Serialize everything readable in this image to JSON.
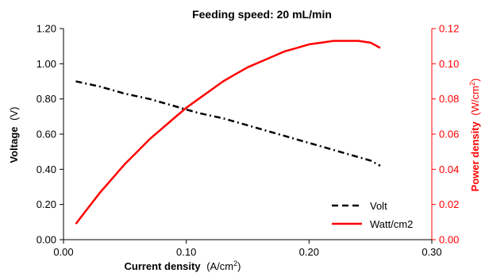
{
  "chart_data": {
    "type": "line",
    "title": "Feeding speed: 20 mL/min",
    "xlabel": "Current density",
    "xlabel_unit": "(A/cm",
    "xlabel_unit_sup": "2",
    "xlabel_unit_end": ")",
    "ylabel": "Voltage",
    "ylabel_unit": "(V)",
    "y2label": "Power density",
    "y2label_unit": "(W/cm",
    "y2label_unit_sup": "2",
    "y2label_unit_end": ")",
    "xlim": [
      0,
      0.3
    ],
    "ylim": [
      0,
      1.2
    ],
    "y2lim": [
      0,
      0.12
    ],
    "x_ticks": [
      "0.00",
      "0.10",
      "0.20",
      "0.30"
    ],
    "x_tick_values": [
      0,
      0.1,
      0.2,
      0.3
    ],
    "y_ticks": [
      "0.00",
      "0.20",
      "0.40",
      "0.60",
      "0.80",
      "1.00",
      "1.20"
    ],
    "y_tick_values": [
      0,
      0.2,
      0.4,
      0.6,
      0.8,
      1.0,
      1.2
    ],
    "y2_ticks": [
      "0.00",
      "0.02",
      "0.04",
      "0.06",
      "0.08",
      "0.10",
      "0.12"
    ],
    "y2_tick_values": [
      0,
      0.02,
      0.04,
      0.06,
      0.08,
      0.1,
      0.12
    ],
    "grid": false,
    "legend_position": "bottom-right",
    "series": [
      {
        "name": "Volt",
        "axis": "left",
        "color": "#000000",
        "dash": "dashed",
        "x": [
          0.01,
          0.03,
          0.05,
          0.07,
          0.09,
          0.11,
          0.13,
          0.15,
          0.17,
          0.19,
          0.21,
          0.23,
          0.25,
          0.258
        ],
        "y": [
          0.9,
          0.87,
          0.83,
          0.8,
          0.76,
          0.72,
          0.69,
          0.65,
          0.61,
          0.57,
          0.53,
          0.49,
          0.45,
          0.42
        ]
      },
      {
        "name": "Watt/cm2",
        "axis": "right",
        "color": "#ff0000",
        "dash": "solid",
        "x": [
          0.01,
          0.02,
          0.03,
          0.04,
          0.05,
          0.06,
          0.07,
          0.08,
          0.09,
          0.1,
          0.11,
          0.12,
          0.13,
          0.14,
          0.15,
          0.16,
          0.17,
          0.18,
          0.19,
          0.2,
          0.21,
          0.22,
          0.23,
          0.24,
          0.25,
          0.258
        ],
        "y": [
          0.009,
          0.018,
          0.027,
          0.035,
          0.043,
          0.05,
          0.057,
          0.063,
          0.069,
          0.075,
          0.08,
          0.085,
          0.09,
          0.094,
          0.098,
          0.101,
          0.104,
          0.107,
          0.109,
          0.111,
          0.112,
          0.113,
          0.113,
          0.113,
          0.112,
          0.109
        ]
      }
    ]
  }
}
